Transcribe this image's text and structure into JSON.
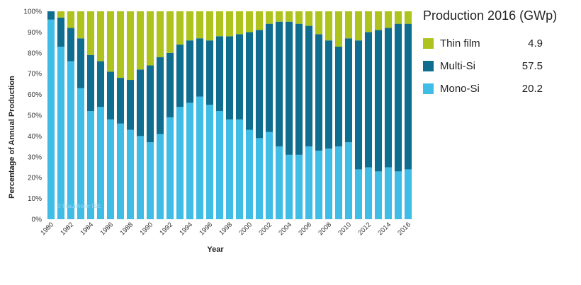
{
  "chart_data": {
    "type": "bar",
    "stacked": true,
    "percent_stacked": true,
    "categories": [
      "1980",
      "1981",
      "1982",
      "1983",
      "1984",
      "1985",
      "1986",
      "1987",
      "1988",
      "1989",
      "1990",
      "1991",
      "1992",
      "1993",
      "1994",
      "1995",
      "1996",
      "1997",
      "1998",
      "1999",
      "2000",
      "2001",
      "2002",
      "2003",
      "2004",
      "2005",
      "2006",
      "2007",
      "2008",
      "2009",
      "2010",
      "2011",
      "2012",
      "2013",
      "2014",
      "2015",
      "2016"
    ],
    "x_tick_labels_shown": [
      "1980",
      "1982",
      "1984",
      "1986",
      "1988",
      "1990",
      "1992",
      "1994",
      "1996",
      "1998",
      "2000",
      "2002",
      "2004",
      "2006",
      "2008",
      "2010",
      "2012",
      "2014",
      "2016"
    ],
    "series": [
      {
        "name": "Mono-Si",
        "color": "#3fbde6",
        "values": [
          96,
          83,
          76,
          63,
          52,
          54,
          48,
          46,
          43,
          40,
          37,
          41,
          49,
          54,
          56,
          59,
          55,
          52,
          48,
          48,
          43,
          39,
          42,
          35,
          31,
          31,
          35,
          33,
          34,
          35,
          37,
          24,
          25,
          23,
          25,
          23,
          24
        ]
      },
      {
        "name": "Multi-Si",
        "color": "#0f6e8f",
        "values": [
          4,
          14,
          16,
          24,
          27,
          22,
          23,
          22,
          24,
          32,
          37,
          37,
          31,
          30,
          30,
          28,
          31,
          36,
          40,
          41,
          47,
          52,
          52,
          60,
          64,
          63,
          58,
          56,
          52,
          48,
          50,
          62,
          65,
          68,
          67,
          71,
          70
        ]
      },
      {
        "name": "Thin film",
        "color": "#afc31e",
        "values": [
          0,
          3,
          8,
          13,
          21,
          24,
          29,
          32,
          33,
          28,
          26,
          22,
          20,
          16,
          14,
          13,
          14,
          12,
          12,
          11,
          10,
          9,
          6,
          5,
          5,
          6,
          7,
          11,
          14,
          17,
          13,
          14,
          10,
          9,
          8,
          6,
          6
        ]
      }
    ],
    "xlabel": "Year",
    "ylabel": "Percentage of Annual Production",
    "ylim": [
      0,
      100
    ],
    "y_ticks": [
      "0%",
      "10%",
      "20%",
      "30%",
      "40%",
      "50%",
      "60%",
      "70%",
      "80%",
      "90%",
      "100%"
    ],
    "grid": false,
    "watermark": "© Fraunhofer ISE",
    "legend": {
      "position": "right",
      "title": "Production 2016 (GWp)",
      "items": [
        {
          "label": "Thin film",
          "value": "4.9",
          "color": "#afc31e"
        },
        {
          "label": "Multi-Si",
          "value": "57.5",
          "color": "#0f6e8f"
        },
        {
          "label": "Mono-Si",
          "value": "20.2",
          "color": "#3fbde6"
        }
      ]
    }
  }
}
